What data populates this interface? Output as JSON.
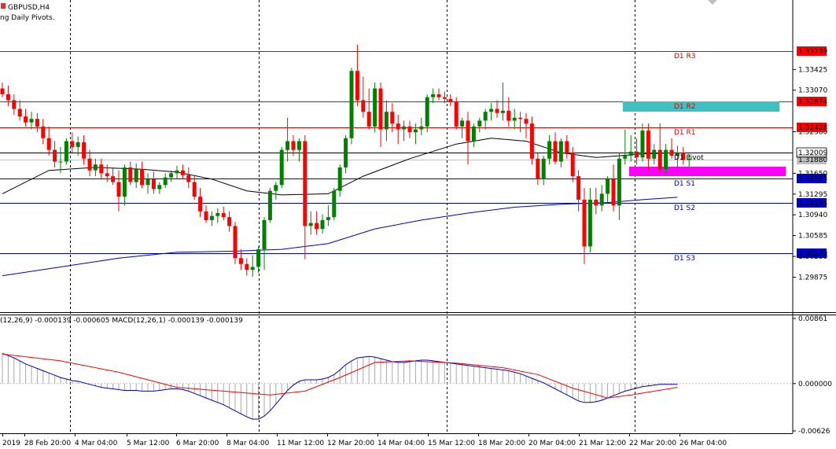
{
  "header": {
    "symbol": "GBPUSD,H4",
    "indicator": "ng Daily Pivots."
  },
  "macd_header": "(12,26,9) -0.000139 -0.000605 MACD(12,26,1) -0.000139 -0.000139",
  "chart_data": {
    "type": "candlestick",
    "symbol": "GBPUSD",
    "timeframe": "H4",
    "price_axis": {
      "range": [
        1.297,
        1.34
      ],
      "ticks": [
        "1.33425",
        "1.33070",
        "1.32360",
        "1.31650",
        "1.31295",
        "1.30940",
        "1.30585",
        "1.30230",
        "1.29875"
      ]
    },
    "current_price": "1.32009",
    "bid_price": "1.31880",
    "pivots": [
      {
        "label": "D1 R3",
        "value": 1.33739,
        "tag": "1.33739",
        "color": "#e00000"
      },
      {
        "label": "D1 R2",
        "value": 1.32874,
        "tag": "1.32874",
        "color": "#e00000"
      },
      {
        "label": "D1 R1",
        "value": 1.32428,
        "tag": "1.32428",
        "color": "#e00000"
      },
      {
        "label": "D1 Pivot",
        "value": 1.32009,
        "tag": "1.32009",
        "color": "#000000"
      },
      {
        "label": "D1 S1",
        "value": 1.31563,
        "tag": "1.31563",
        "color": "#0000cc"
      },
      {
        "label": "D1 S2",
        "value": 1.31144,
        "tag": "1.31144",
        "color": "#0000cc"
      },
      {
        "label": "D1 S3",
        "value": 1.30279,
        "tag": "1.30279",
        "color": "#0000cc"
      }
    ],
    "x_labels": [
      "2019",
      "28 Feb 20:00",
      "4 Mar 04:00",
      "5 Mar 12:00",
      "6 Mar 20:00",
      "8 Mar 04:00",
      "11 Mar 12:00",
      "12 Mar 20:00",
      "14 Mar 04:00",
      "15 Mar 12:00",
      "18 Mar 20:00",
      "20 Mar 04:00",
      "21 Mar 12:00",
      "22 Mar 20:00",
      "26 Mar 04:00"
    ],
    "candles": [
      [
        1.331,
        1.332,
        1.3295,
        1.33
      ],
      [
        1.33,
        1.3315,
        1.328,
        1.329
      ],
      [
        1.329,
        1.33,
        1.3265,
        1.3275
      ],
      [
        1.3275,
        1.329,
        1.3255,
        1.3262
      ],
      [
        1.3262,
        1.3275,
        1.3245,
        1.3252
      ],
      [
        1.3252,
        1.327,
        1.324,
        1.3258
      ],
      [
        1.3258,
        1.3268,
        1.3235,
        1.3245
      ],
      [
        1.3245,
        1.3258,
        1.3215,
        1.3225
      ],
      [
        1.3225,
        1.3245,
        1.3195,
        1.3205
      ],
      [
        1.3205,
        1.322,
        1.3175,
        1.3185
      ],
      [
        1.3185,
        1.321,
        1.3165,
        1.3185
      ],
      [
        1.3185,
        1.3225,
        1.318,
        1.322
      ],
      [
        1.322,
        1.3235,
        1.32,
        1.321
      ],
      [
        1.321,
        1.3228,
        1.3195,
        1.3218
      ],
      [
        1.3218,
        1.323,
        1.318,
        1.319
      ],
      [
        1.319,
        1.3205,
        1.316,
        1.317
      ],
      [
        1.317,
        1.319,
        1.316,
        1.318
      ],
      [
        1.318,
        1.319,
        1.3155,
        1.3165
      ],
      [
        1.3165,
        1.318,
        1.315,
        1.316
      ],
      [
        1.316,
        1.3175,
        1.3145,
        1.315
      ],
      [
        1.315,
        1.317,
        1.31,
        1.3125
      ],
      [
        1.3125,
        1.318,
        1.311,
        1.3175
      ],
      [
        1.3175,
        1.3185,
        1.3145,
        1.315
      ],
      [
        1.315,
        1.3182,
        1.314,
        1.3172
      ],
      [
        1.3172,
        1.3185,
        1.314,
        1.3145
      ],
      [
        1.3145,
        1.3165,
        1.313,
        1.3155
      ],
      [
        1.3155,
        1.3168,
        1.313,
        1.3138
      ],
      [
        1.3138,
        1.315,
        1.313,
        1.3145
      ],
      [
        1.3145,
        1.3165,
        1.314,
        1.3158
      ],
      [
        1.3158,
        1.317,
        1.315,
        1.3165
      ],
      [
        1.3165,
        1.3178,
        1.3155,
        1.317
      ],
      [
        1.317,
        1.318,
        1.3155,
        1.3162
      ],
      [
        1.3162,
        1.3175,
        1.314,
        1.315
      ],
      [
        1.315,
        1.316,
        1.312,
        1.3125
      ],
      [
        1.3125,
        1.314,
        1.309,
        1.31
      ],
      [
        1.31,
        1.311,
        1.308,
        1.3085
      ],
      [
        1.3085,
        1.31,
        1.3075,
        1.3092
      ],
      [
        1.3092,
        1.3105,
        1.308,
        1.3097
      ],
      [
        1.3097,
        1.3108,
        1.3085,
        1.309
      ],
      [
        1.309,
        1.31,
        1.3065,
        1.3075
      ],
      [
        1.3075,
        1.3082,
        1.301,
        1.302
      ],
      [
        1.302,
        1.3035,
        1.3,
        1.301
      ],
      [
        1.301,
        1.302,
        1.299,
        1.3
      ],
      [
        1.3,
        1.3025,
        1.2988,
        1.3005
      ],
      [
        1.3005,
        1.304,
        1.2995,
        1.3035
      ],
      [
        1.3035,
        1.309,
        1.3,
        1.3085
      ],
      [
        1.3085,
        1.314,
        1.308,
        1.3135
      ],
      [
        1.3135,
        1.315,
        1.312,
        1.3145
      ],
      [
        1.3145,
        1.321,
        1.314,
        1.3205
      ],
      [
        1.3205,
        1.326,
        1.3185,
        1.322
      ],
      [
        1.322,
        1.323,
        1.3195,
        1.3205
      ],
      [
        1.3205,
        1.3225,
        1.3185,
        1.322
      ],
      [
        1.322,
        1.323,
        1.3018,
        1.3075
      ],
      [
        1.3075,
        1.31,
        1.306,
        1.308
      ],
      [
        1.308,
        1.31,
        1.306,
        1.307
      ],
      [
        1.307,
        1.3095,
        1.3062,
        1.3085
      ],
      [
        1.3085,
        1.311,
        1.3075,
        1.309
      ],
      [
        1.309,
        1.314,
        1.3085,
        1.3135
      ],
      [
        1.3135,
        1.318,
        1.3125,
        1.3175
      ],
      [
        1.3175,
        1.323,
        1.3165,
        1.3225
      ],
      [
        1.3225,
        1.3345,
        1.3215,
        1.334
      ],
      [
        1.334,
        1.3385,
        1.328,
        1.329
      ],
      [
        1.329,
        1.333,
        1.326,
        1.327
      ],
      [
        1.327,
        1.331,
        1.324,
        1.3245
      ],
      [
        1.3245,
        1.332,
        1.3235,
        1.331
      ],
      [
        1.331,
        1.332,
        1.321,
        1.324
      ],
      [
        1.324,
        1.329,
        1.322,
        1.327
      ],
      [
        1.327,
        1.3285,
        1.3235,
        1.325
      ],
      [
        1.325,
        1.3265,
        1.3215,
        1.324
      ],
      [
        1.324,
        1.3255,
        1.322,
        1.3245
      ],
      [
        1.3245,
        1.3255,
        1.3225,
        1.3235
      ],
      [
        1.3235,
        1.325,
        1.3215,
        1.324
      ],
      [
        1.324,
        1.326,
        1.323,
        1.3245
      ],
      [
        1.3245,
        1.33,
        1.3235,
        1.3295
      ],
      [
        1.3295,
        1.331,
        1.3285,
        1.33
      ],
      [
        1.33,
        1.331,
        1.329,
        1.3295
      ],
      [
        1.3295,
        1.3305,
        1.3285,
        1.3292
      ],
      [
        1.3292,
        1.33,
        1.328,
        1.3287
      ],
      [
        1.3287,
        1.3295,
        1.324,
        1.3245
      ],
      [
        1.3245,
        1.326,
        1.3225,
        1.3255
      ],
      [
        1.3255,
        1.327,
        1.318,
        1.322
      ],
      [
        1.322,
        1.325,
        1.321,
        1.3245
      ],
      [
        1.3245,
        1.326,
        1.3235,
        1.3255
      ],
      [
        1.3255,
        1.3275,
        1.324,
        1.327
      ],
      [
        1.327,
        1.3285,
        1.3255,
        1.3275
      ],
      [
        1.3275,
        1.329,
        1.326,
        1.3268
      ],
      [
        1.3268,
        1.332,
        1.3255,
        1.3272
      ],
      [
        1.3272,
        1.3295,
        1.3245,
        1.3255
      ],
      [
        1.3255,
        1.3275,
        1.324,
        1.326
      ],
      [
        1.326,
        1.327,
        1.3235,
        1.3258
      ],
      [
        1.3258,
        1.3268,
        1.3225,
        1.325
      ],
      [
        1.325,
        1.3262,
        1.318,
        1.319
      ],
      [
        1.319,
        1.32,
        1.3145,
        1.3155
      ],
      [
        1.3155,
        1.3195,
        1.3145,
        1.319
      ],
      [
        1.319,
        1.323,
        1.318,
        1.322
      ],
      [
        1.322,
        1.3235,
        1.318,
        1.3185
      ],
      [
        1.3185,
        1.3225,
        1.3175,
        1.322
      ],
      [
        1.322,
        1.323,
        1.319,
        1.32
      ],
      [
        1.32,
        1.321,
        1.315,
        1.316
      ],
      [
        1.316,
        1.317,
        1.31,
        1.312
      ],
      [
        1.312,
        1.314,
        1.301,
        1.304
      ],
      [
        1.304,
        1.314,
        1.303,
        1.312
      ],
      [
        1.312,
        1.314,
        1.3095,
        1.311
      ],
      [
        1.311,
        1.3145,
        1.31,
        1.313
      ],
      [
        1.313,
        1.316,
        1.3115,
        1.3155
      ],
      [
        1.3155,
        1.318,
        1.31,
        1.311
      ],
      [
        1.311,
        1.32,
        1.3085,
        1.319
      ],
      [
        1.319,
        1.324,
        1.318,
        1.3195
      ],
      [
        1.3195,
        1.323,
        1.3185,
        1.3202
      ],
      [
        1.3202,
        1.3225,
        1.318,
        1.3192
      ],
      [
        1.3192,
        1.325,
        1.3185,
        1.3238
      ],
      [
        1.3238,
        1.325,
        1.317,
        1.319
      ],
      [
        1.319,
        1.3215,
        1.318,
        1.3205
      ],
      [
        1.3205,
        1.325,
        1.3165,
        1.3172
      ],
      [
        1.3172,
        1.3215,
        1.3165,
        1.3205
      ],
      [
        1.3205,
        1.3225,
        1.319,
        1.3195
      ],
      [
        1.3195,
        1.3212,
        1.3168,
        1.32
      ],
      [
        1.32,
        1.321,
        1.318,
        1.3188
      ],
      [
        1.3188,
        1.3198,
        1.3175,
        1.319
      ]
    ],
    "ma_fast": [
      [
        0,
        1.313
      ],
      [
        8,
        1.317
      ],
      [
        16,
        1.3175
      ],
      [
        24,
        1.3172
      ],
      [
        30,
        1.3167
      ],
      [
        36,
        1.3155
      ],
      [
        42,
        1.3135
      ],
      [
        48,
        1.3128
      ],
      [
        56,
        1.313
      ],
      [
        62,
        1.316
      ],
      [
        70,
        1.319
      ],
      [
        78,
        1.3215
      ],
      [
        84,
        1.3225
      ],
      [
        90,
        1.322
      ],
      [
        96,
        1.32
      ],
      [
        102,
        1.3192
      ],
      [
        110,
        1.3198
      ],
      [
        116,
        1.32
      ]
    ],
    "ma_slow": [
      [
        0,
        1.299
      ],
      [
        10,
        1.3005
      ],
      [
        20,
        1.302
      ],
      [
        30,
        1.303
      ],
      [
        40,
        1.3032
      ],
      [
        48,
        1.3035
      ],
      [
        56,
        1.3045
      ],
      [
        64,
        1.307
      ],
      [
        72,
        1.3085
      ],
      [
        80,
        1.3097
      ],
      [
        88,
        1.3107
      ],
      [
        96,
        1.3112
      ],
      [
        104,
        1.3115
      ],
      [
        110,
        1.312
      ],
      [
        116,
        1.3124
      ]
    ],
    "macd": {
      "range": [
        -0.00626,
        0.00861
      ],
      "ticks": [
        "0.00861",
        "0.000000",
        "-0.00626"
      ],
      "hist": [
        0.004,
        0.0037,
        0.0034,
        0.003,
        0.0026,
        0.0023,
        0.002,
        0.0017,
        0.0014,
        0.0011,
        0.0008,
        0.0006,
        0.0004,
        0.0003,
        0.0001,
        -0.0001,
        -0.0003,
        -0.0005,
        -0.0006,
        -0.0007,
        -0.0008,
        -0.0009,
        -0.0009,
        -0.0009,
        -0.001,
        -0.001,
        -0.001,
        -0.0009,
        -0.0008,
        -0.0007,
        -0.0007,
        -0.0008,
        -0.001,
        -0.0013,
        -0.0016,
        -0.0019,
        -0.0022,
        -0.0025,
        -0.0028,
        -0.0032,
        -0.0036,
        -0.004,
        -0.0044,
        -0.0047,
        -0.0047,
        -0.0043,
        -0.0036,
        -0.0027,
        -0.0018,
        -0.0009,
        -0.0002,
        0.0003,
        0.0005,
        0.0005,
        0.0005,
        0.0006,
        0.0008,
        0.0012,
        0.0018,
        0.0025,
        0.003,
        0.0034,
        0.0035,
        0.0036,
        0.0035,
        0.0033,
        0.0031,
        0.0029,
        0.0028,
        0.0028,
        0.0029,
        0.003,
        0.0031,
        0.0031,
        0.003,
        0.0029,
        0.0028,
        0.0027,
        0.0026,
        0.0025,
        0.0024,
        0.0023,
        0.0022,
        0.0021,
        0.002,
        0.0019,
        0.0018,
        0.0017,
        0.0015,
        0.0013,
        0.001,
        0.0007,
        0.0004,
        0.0001,
        -0.0003,
        -0.0007,
        -0.0011,
        -0.0015,
        -0.0019,
        -0.0023,
        -0.0025,
        -0.0025,
        -0.0024,
        -0.0022,
        -0.0019,
        -0.0016,
        -0.0013,
        -0.001,
        -0.0008,
        -0.0006,
        -0.0004,
        -0.0003,
        -0.0002,
        -0.0001,
        -0.0001,
        -0.0001,
        -0.0001
      ],
      "signal": [
        [
          0,
          0.0039
        ],
        [
          10,
          0.003
        ],
        [
          20,
          0.0015
        ],
        [
          30,
          -0.0005
        ],
        [
          38,
          -0.001
        ],
        [
          46,
          -0.0015
        ],
        [
          52,
          -0.001
        ],
        [
          58,
          0.0008
        ],
        [
          64,
          0.0028
        ],
        [
          70,
          0.003
        ],
        [
          78,
          0.0027
        ],
        [
          86,
          0.0021
        ],
        [
          92,
          0.0012
        ],
        [
          98,
          -0.0006
        ],
        [
          104,
          -0.0019
        ],
        [
          108,
          -0.0015
        ],
        [
          116,
          -0.0005
        ]
      ]
    }
  }
}
